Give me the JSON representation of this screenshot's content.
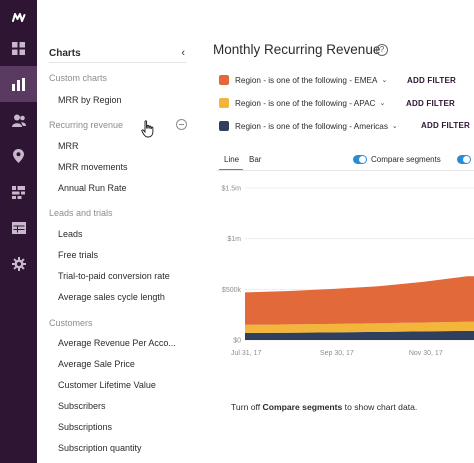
{
  "sidebar": {
    "title": "Charts",
    "sections": [
      {
        "name": "Custom charts",
        "items": [
          "MRR by Region"
        ]
      },
      {
        "name": "Recurring revenue",
        "items": [
          "MRR",
          "MRR movements",
          "Annual Run Rate"
        ]
      },
      {
        "name": "Leads and trials",
        "items": [
          "Leads",
          "Free trials",
          "Trial-to-paid conversion rate",
          "Average sales cycle length"
        ]
      },
      {
        "name": "Customers",
        "items": [
          "Average Revenue Per Acco...",
          "Average Sale Price",
          "Customer Lifetime Value",
          "Subscribers",
          "Subscriptions",
          "Subscription quantity"
        ]
      }
    ]
  },
  "main": {
    "title": "Monthly Recurring Revenue",
    "filters": [
      {
        "label": "Region - is one of the following - EMEA",
        "color": "#e2693a",
        "action": "ADD FILTER"
      },
      {
        "label": "Region - is one of the following - APAC",
        "color": "#f3b63a",
        "action": "ADD FILTER"
      },
      {
        "label": "Region - is one of the following - Americas",
        "color": "#2f3f5c",
        "action": "ADD FILTER"
      }
    ],
    "tabs": [
      "Line",
      "Bar"
    ],
    "compare_label": "Compare segments",
    "footer_prefix": "Turn off ",
    "footer_bold": "Compare segments",
    "footer_suffix": " to show chart data."
  },
  "chart_data": {
    "type": "area",
    "x": [
      "Jul 31, 17",
      "Aug 31, 17",
      "Sep 30, 17",
      "Oct 31, 17",
      "Nov 30, 17",
      "Dec 31, 17"
    ],
    "x_tick_labels": [
      "Jul 31, 17",
      "Sep 30, 17",
      "Nov 30, 17"
    ],
    "y_tick_labels": [
      "$0",
      "$500k",
      "$1m",
      "$1.5m"
    ],
    "ylim": [
      0,
      1500000
    ],
    "stacked": true,
    "series": [
      {
        "name": "Americas",
        "color": "#2f3f5c",
        "values": [
          70000,
          72000,
          75000,
          80000,
          85000,
          90000
        ]
      },
      {
        "name": "APAC",
        "color": "#f3b63a",
        "values": [
          80000,
          82000,
          84000,
          86000,
          88000,
          90000
        ]
      },
      {
        "name": "EMEA",
        "color": "#e2693a",
        "values": [
          320000,
          330000,
          345000,
          365000,
          400000,
          450000
        ]
      }
    ]
  }
}
